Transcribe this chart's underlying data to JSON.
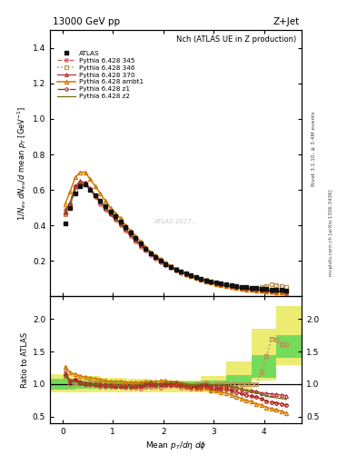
{
  "title_left": "13000 GeV pp",
  "title_right": "Z+Jet",
  "plot_title": "Nch (ATLAS UE in Z production)",
  "ylabel_main": "1/N_{ev} dN_{ev}/d mean p_T [GeV]^{-1}",
  "ylabel_ratio": "Ratio to ATLAS",
  "xlabel": "Mean p_T/dη dφ",
  "right_label_top": "Rivet 3.1.10, ≥ 3.4M events",
  "right_label_bot": "mcplots.cern.ch [arXiv:1306.3436]",
  "watermark": "ATLAS 2017...",
  "ylim_main": [
    0.0,
    1.5
  ],
  "ylim_ratio": [
    0.4,
    2.35
  ],
  "xlim": [
    -0.25,
    4.75
  ],
  "atlas_x": [
    0.05,
    0.15,
    0.25,
    0.35,
    0.45,
    0.55,
    0.65,
    0.75,
    0.85,
    0.95,
    1.05,
    1.15,
    1.25,
    1.35,
    1.45,
    1.55,
    1.65,
    1.75,
    1.85,
    1.95,
    2.05,
    2.15,
    2.25,
    2.35,
    2.45,
    2.55,
    2.65,
    2.75,
    2.85,
    2.95,
    3.05,
    3.15,
    3.25,
    3.35,
    3.45,
    3.55,
    3.65,
    3.75,
    3.85,
    3.95,
    4.05,
    4.15,
    4.25,
    4.35,
    4.45
  ],
  "atlas_y": [
    0.41,
    0.5,
    0.58,
    0.62,
    0.63,
    0.6,
    0.57,
    0.54,
    0.51,
    0.48,
    0.45,
    0.42,
    0.39,
    0.36,
    0.33,
    0.3,
    0.27,
    0.24,
    0.22,
    0.2,
    0.18,
    0.165,
    0.15,
    0.14,
    0.13,
    0.12,
    0.11,
    0.1,
    0.09,
    0.085,
    0.078,
    0.072,
    0.066,
    0.062,
    0.058,
    0.055,
    0.052,
    0.049,
    0.046,
    0.044,
    0.042,
    0.04,
    0.038,
    0.036,
    0.034
  ],
  "p345_x": [
    0.05,
    0.15,
    0.25,
    0.35,
    0.45,
    0.55,
    0.65,
    0.75,
    0.85,
    0.95,
    1.05,
    1.15,
    1.25,
    1.35,
    1.45,
    1.55,
    1.65,
    1.75,
    1.85,
    1.95,
    2.05,
    2.15,
    2.25,
    2.35,
    2.45,
    2.55,
    2.65,
    2.75,
    2.85,
    2.95,
    3.05,
    3.15,
    3.25,
    3.35,
    3.45,
    3.55,
    3.65,
    3.75,
    3.85,
    3.95,
    4.05,
    4.15,
    4.25,
    4.35,
    4.45
  ],
  "p345_y": [
    0.49,
    0.52,
    0.62,
    0.64,
    0.64,
    0.6,
    0.56,
    0.52,
    0.49,
    0.46,
    0.43,
    0.4,
    0.37,
    0.34,
    0.31,
    0.28,
    0.26,
    0.23,
    0.21,
    0.19,
    0.175,
    0.16,
    0.145,
    0.132,
    0.122,
    0.112,
    0.102,
    0.093,
    0.085,
    0.078,
    0.072,
    0.066,
    0.06,
    0.055,
    0.051,
    0.047,
    0.043,
    0.04,
    0.037,
    0.034,
    0.031,
    0.029,
    0.027,
    0.025,
    0.023
  ],
  "p346_x": [
    0.05,
    0.15,
    0.25,
    0.35,
    0.45,
    0.55,
    0.65,
    0.75,
    0.85,
    0.95,
    1.05,
    1.15,
    1.25,
    1.35,
    1.45,
    1.55,
    1.65,
    1.75,
    1.85,
    1.95,
    2.05,
    2.15,
    2.25,
    2.35,
    2.45,
    2.55,
    2.65,
    2.75,
    2.85,
    2.95,
    3.05,
    3.15,
    3.25,
    3.35,
    3.45,
    3.55,
    3.65,
    3.75,
    3.85,
    3.95,
    4.05,
    4.15,
    4.25,
    4.35,
    4.45
  ],
  "p346_y": [
    0.46,
    0.5,
    0.6,
    0.63,
    0.63,
    0.6,
    0.57,
    0.54,
    0.5,
    0.47,
    0.44,
    0.41,
    0.38,
    0.35,
    0.32,
    0.3,
    0.27,
    0.24,
    0.22,
    0.2,
    0.185,
    0.17,
    0.155,
    0.142,
    0.13,
    0.119,
    0.11,
    0.1,
    0.092,
    0.084,
    0.078,
    0.072,
    0.067,
    0.062,
    0.058,
    0.055,
    0.052,
    0.049,
    0.046,
    0.052,
    0.06,
    0.068,
    0.064,
    0.058,
    0.055
  ],
  "p370_x": [
    0.05,
    0.15,
    0.25,
    0.35,
    0.45,
    0.55,
    0.65,
    0.75,
    0.85,
    0.95,
    1.05,
    1.15,
    1.25,
    1.35,
    1.45,
    1.55,
    1.65,
    1.75,
    1.85,
    1.95,
    2.05,
    2.15,
    2.25,
    2.35,
    2.45,
    2.55,
    2.65,
    2.75,
    2.85,
    2.95,
    3.05,
    3.15,
    3.25,
    3.35,
    3.45,
    3.55,
    3.65,
    3.75,
    3.85,
    3.95,
    4.05,
    4.15,
    4.25,
    4.35,
    4.45
  ],
  "p370_y": [
    0.48,
    0.53,
    0.62,
    0.65,
    0.64,
    0.61,
    0.57,
    0.54,
    0.5,
    0.47,
    0.44,
    0.41,
    0.38,
    0.35,
    0.32,
    0.29,
    0.27,
    0.24,
    0.22,
    0.2,
    0.18,
    0.165,
    0.15,
    0.138,
    0.127,
    0.116,
    0.107,
    0.098,
    0.09,
    0.082,
    0.076,
    0.07,
    0.064,
    0.059,
    0.055,
    0.051,
    0.047,
    0.044,
    0.041,
    0.038,
    0.036,
    0.034,
    0.032,
    0.03,
    0.028
  ],
  "pambt1_x": [
    0.05,
    0.15,
    0.25,
    0.35,
    0.45,
    0.55,
    0.65,
    0.75,
    0.85,
    0.95,
    1.05,
    1.15,
    1.25,
    1.35,
    1.45,
    1.55,
    1.65,
    1.75,
    1.85,
    1.95,
    2.05,
    2.15,
    2.25,
    2.35,
    2.45,
    2.55,
    2.65,
    2.75,
    2.85,
    2.95,
    3.05,
    3.15,
    3.25,
    3.35,
    3.45,
    3.55,
    3.65,
    3.75,
    3.85,
    3.95,
    4.05,
    4.15,
    4.25,
    4.35,
    4.45
  ],
  "pambt1_y": [
    0.52,
    0.59,
    0.67,
    0.7,
    0.7,
    0.66,
    0.62,
    0.58,
    0.54,
    0.5,
    0.47,
    0.44,
    0.4,
    0.37,
    0.34,
    0.31,
    0.28,
    0.25,
    0.23,
    0.21,
    0.19,
    0.17,
    0.155,
    0.14,
    0.127,
    0.115,
    0.104,
    0.094,
    0.085,
    0.077,
    0.07,
    0.063,
    0.057,
    0.052,
    0.047,
    0.043,
    0.039,
    0.036,
    0.032,
    0.03,
    0.027,
    0.025,
    0.023,
    0.021,
    0.019
  ],
  "pz1_x": [
    0.05,
    0.15,
    0.25,
    0.35,
    0.45,
    0.55,
    0.65,
    0.75,
    0.85,
    0.95,
    1.05,
    1.15,
    1.25,
    1.35,
    1.45,
    1.55,
    1.65,
    1.75,
    1.85,
    1.95,
    2.05,
    2.15,
    2.25,
    2.35,
    2.45,
    2.55,
    2.65,
    2.75,
    2.85,
    2.95,
    3.05,
    3.15,
    3.25,
    3.35,
    3.45,
    3.55,
    3.65,
    3.75,
    3.85,
    3.95,
    4.05,
    4.15,
    4.25,
    4.35,
    4.45
  ],
  "pz1_y": [
    0.47,
    0.52,
    0.62,
    0.63,
    0.63,
    0.6,
    0.57,
    0.53,
    0.5,
    0.47,
    0.44,
    0.41,
    0.38,
    0.35,
    0.32,
    0.29,
    0.27,
    0.24,
    0.22,
    0.2,
    0.18,
    0.165,
    0.15,
    0.138,
    0.126,
    0.115,
    0.105,
    0.096,
    0.088,
    0.08,
    0.073,
    0.067,
    0.061,
    0.056,
    0.051,
    0.047,
    0.043,
    0.04,
    0.037,
    0.034,
    0.031,
    0.029,
    0.027,
    0.025,
    0.023
  ],
  "pz2_x": [
    0.05,
    0.15,
    0.25,
    0.35,
    0.45,
    0.55,
    0.65,
    0.75,
    0.85,
    0.95,
    1.05,
    1.15,
    1.25,
    1.35,
    1.45,
    1.55,
    1.65,
    1.75,
    1.85,
    1.95,
    2.05,
    2.15,
    2.25,
    2.35,
    2.45,
    2.55,
    2.65,
    2.75,
    2.85,
    2.95,
    3.05,
    3.15,
    3.25,
    3.35,
    3.45,
    3.55,
    3.65,
    3.75,
    3.85,
    3.95,
    4.05,
    4.15,
    4.25,
    4.35,
    4.45
  ],
  "pz2_y": [
    0.47,
    0.52,
    0.6,
    0.63,
    0.63,
    0.6,
    0.57,
    0.53,
    0.5,
    0.47,
    0.44,
    0.41,
    0.38,
    0.35,
    0.32,
    0.3,
    0.27,
    0.25,
    0.22,
    0.2,
    0.185,
    0.17,
    0.155,
    0.142,
    0.13,
    0.119,
    0.109,
    0.1,
    0.091,
    0.084,
    0.077,
    0.071,
    0.065,
    0.06,
    0.055,
    0.051,
    0.047,
    0.043,
    0.04,
    0.037,
    0.034,
    0.032,
    0.03,
    0.028,
    0.026
  ],
  "band_x_edges": [
    -0.25,
    0.25,
    0.75,
    1.25,
    1.75,
    2.25,
    2.75,
    3.25,
    3.75,
    4.25,
    4.75
  ],
  "band_yellow_lo": [
    0.88,
    0.88,
    0.88,
    0.88,
    0.88,
    0.88,
    0.88,
    0.9,
    1.05,
    1.3
  ],
  "band_yellow_hi": [
    1.15,
    1.12,
    1.1,
    1.08,
    1.05,
    1.06,
    1.12,
    1.35,
    1.85,
    2.2
  ],
  "band_green_lo": [
    0.92,
    0.93,
    0.93,
    0.93,
    0.94,
    0.95,
    0.97,
    1.0,
    1.1,
    1.4
  ],
  "band_green_hi": [
    1.08,
    1.06,
    1.05,
    1.04,
    1.03,
    1.04,
    1.06,
    1.14,
    1.45,
    1.75
  ],
  "color_345": "#d45050",
  "color_346": "#b89050",
  "color_370": "#b03030",
  "color_ambt1": "#d07800",
  "color_z1": "#aa2020",
  "color_z2": "#707015",
  "color_atlas": "#111111",
  "yticks_main": [
    0.2,
    0.4,
    0.6,
    0.8,
    1.0,
    1.2,
    1.4
  ],
  "yticks_ratio": [
    0.5,
    1.0,
    1.5,
    2.0
  ],
  "xticks": [
    0,
    1,
    2,
    3,
    4
  ]
}
